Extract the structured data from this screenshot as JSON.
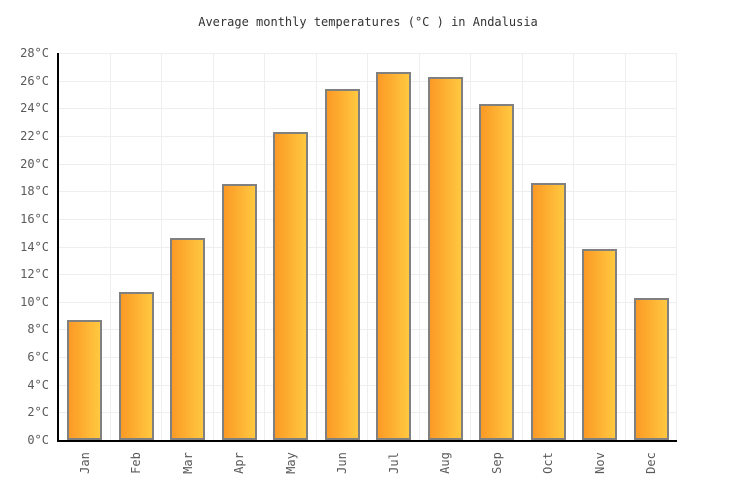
{
  "title": "Average monthly temperatures (°C ) in Andalusia",
  "chart_data": {
    "type": "bar",
    "title": "Average monthly temperatures (°C ) in Andalusia",
    "categories": [
      "Jan",
      "Feb",
      "Mar",
      "Apr",
      "May",
      "Jun",
      "Jul",
      "Aug",
      "Sep",
      "Oct",
      "Nov",
      "Dec"
    ],
    "values": [
      8.7,
      10.7,
      14.6,
      18.5,
      22.3,
      25.4,
      26.6,
      26.3,
      24.3,
      18.6,
      13.8,
      10.3
    ],
    "xlabel": "",
    "ylabel": "",
    "ylim": [
      0,
      28
    ],
    "y_tick_step": 2,
    "y_tick_labels": [
      "0°C",
      "2°C",
      "4°C",
      "6°C",
      "8°C",
      "10°C",
      "12°C",
      "14°C",
      "16°C",
      "18°C",
      "20°C",
      "22°C",
      "24°C",
      "26°C",
      "28°C"
    ],
    "grid": true,
    "legend_position": "none",
    "unit": "°C"
  },
  "colors": {
    "background": "#ffffff",
    "bar_gradient_left": "#fb9a25",
    "bar_gradient_right": "#ffc840",
    "bar_border": "#808080",
    "gridline": "#eeeeee",
    "axis": "#000000",
    "tick_label": "#5a5a5a",
    "title_text": "#333333"
  }
}
